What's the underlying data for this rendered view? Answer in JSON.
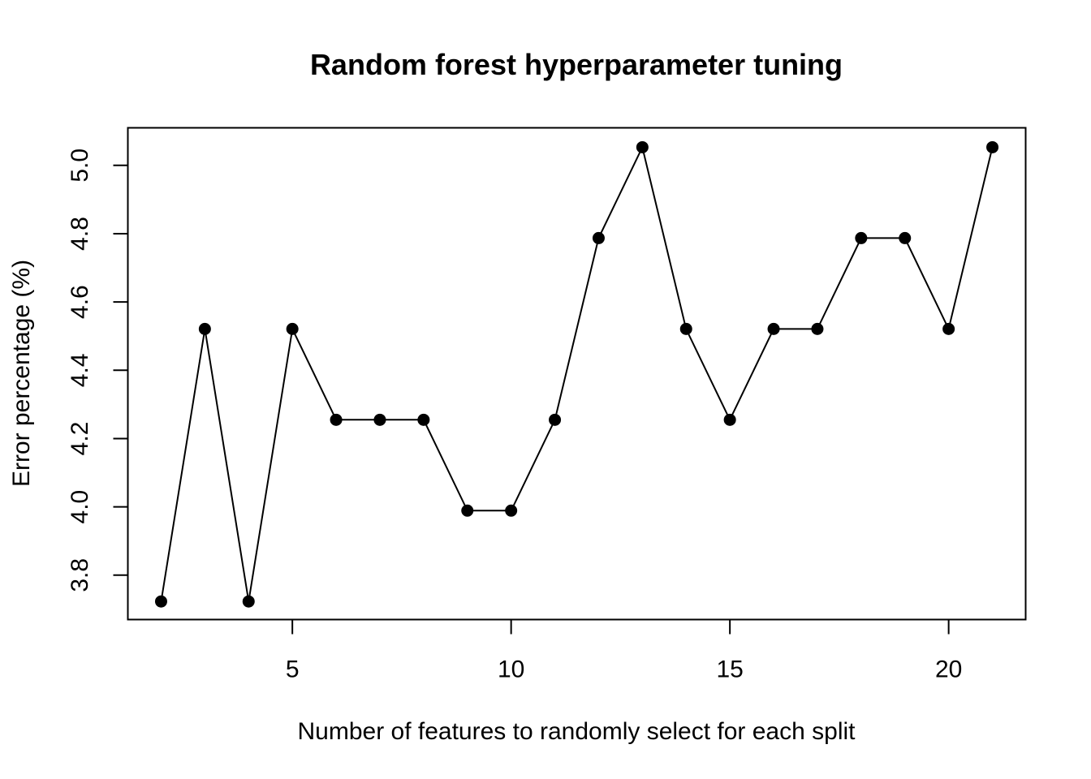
{
  "chart_data": {
    "type": "line",
    "title": "Random forest hyperparameter tuning",
    "xlabel": "Number of features to randomly select for each split",
    "ylabel": "Error percentage (%)",
    "xlim": [
      1.24,
      21.76
    ],
    "ylim": [
      3.67,
      5.11
    ],
    "x_ticks": [
      5,
      10,
      15,
      20
    ],
    "y_ticks": [
      3.8,
      4.0,
      4.2,
      4.4,
      4.6,
      4.8,
      5.0
    ],
    "x_tick_labels": [
      "5",
      "10",
      "15",
      "20"
    ],
    "y_tick_labels": [
      "3.8",
      "4.0",
      "4.2",
      "4.4",
      "4.6",
      "4.8",
      "5.0"
    ],
    "grid": false,
    "legend": "none",
    "series": [
      {
        "x": [
          2,
          3,
          4,
          5,
          6,
          7,
          8,
          9,
          10,
          11,
          12,
          13,
          14,
          15,
          16,
          17,
          18,
          19,
          20,
          21
        ],
        "values": [
          3.723,
          4.521,
          3.723,
          4.521,
          4.255,
          4.255,
          4.255,
          3.989,
          3.989,
          4.255,
          4.787,
          5.053,
          4.521,
          4.255,
          4.521,
          4.521,
          4.787,
          4.787,
          4.521,
          5.053
        ],
        "color": "#000000",
        "marker": "filled-circle"
      }
    ]
  }
}
